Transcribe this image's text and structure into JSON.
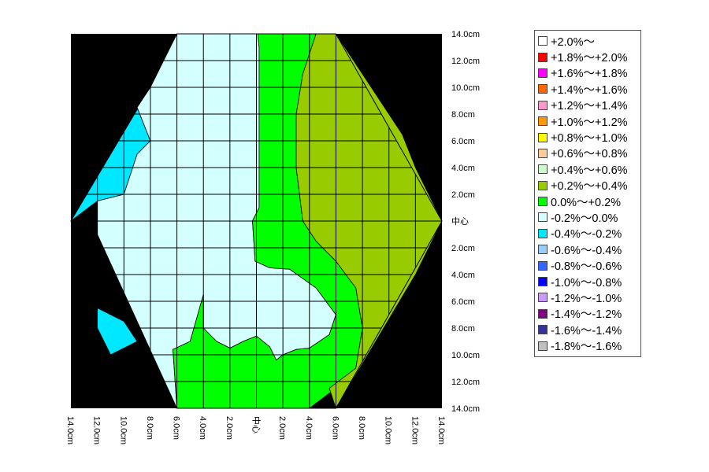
{
  "chart_data": {
    "type": "heatmap",
    "plot_kind": "contour",
    "title": "",
    "background_color": "#000000",
    "grid": true,
    "legend_position": "right",
    "right_axis_labels": [
      "14.0cm",
      "12.0cm",
      "10.0cm",
      "8.0cm",
      "6.0cm",
      "4.0cm",
      "2.0cm",
      "中心",
      "2.0cm",
      "4.0cm",
      "6.0cm",
      "8.0cm",
      "10.0cm",
      "12.0cm",
      "14.0cm"
    ],
    "bottom_axis_labels": [
      "14.0cm",
      "12.0cm",
      "10.0cm",
      "8.0cm",
      "6.0cm",
      "4.0cm",
      "2.0cm",
      "中心",
      "2.0cm",
      "4.0cm",
      "6.0cm",
      "8.0cm",
      "10.0cm",
      "12.0cm",
      "14.0cm"
    ],
    "x_range_cm": [
      -14,
      14
    ],
    "y_range_cm": [
      -14,
      14
    ],
    "grid_lines_cm": [
      -12,
      -10,
      -8,
      -6,
      -4,
      -2,
      0,
      2,
      4,
      6,
      8,
      10,
      12
    ],
    "sample_outline": [
      [
        -14,
        0
      ],
      [
        -6,
        14
      ],
      [
        6,
        14
      ],
      [
        14,
        0
      ],
      [
        6,
        -14
      ],
      [
        -6,
        -14
      ]
    ],
    "regions": [
      {
        "range": "-0.4%～-0.2%",
        "color": "#00e8ff",
        "points": [
          [
            -14,
            0
          ],
          [
            -12,
            1.5
          ],
          [
            -10,
            2
          ],
          [
            -9,
            5
          ],
          [
            -8,
            6
          ],
          [
            -9,
            8.5
          ],
          [
            -8,
            10
          ]
        ]
      },
      {
        "range": "-0.4%～-0.2%",
        "color": "#00e8ff",
        "points": [
          [
            -12,
            -4
          ],
          [
            -12,
            -6.5
          ],
          [
            -10,
            -7.5
          ],
          [
            -9,
            -9
          ],
          [
            -11,
            -10
          ],
          [
            -12,
            -8
          ]
        ]
      },
      {
        "range": "-0.2%～0.0%",
        "color": "#d4ffff",
        "points": [
          [
            -6,
            14
          ],
          [
            0.1,
            14
          ],
          [
            0.2,
            13
          ],
          [
            0.2,
            1
          ],
          [
            -0.3,
            0
          ],
          [
            -0.1,
            -3
          ],
          [
            1,
            -3.5
          ],
          [
            2.5,
            -3.6
          ],
          [
            4.5,
            -5
          ],
          [
            6,
            -7
          ],
          [
            5.5,
            -8.5
          ],
          [
            4,
            -9.5
          ],
          [
            3,
            -9.6
          ],
          [
            2,
            -10
          ],
          [
            1.5,
            -10.4
          ],
          [
            1,
            -9.4
          ],
          [
            0,
            -8.6
          ],
          [
            -1,
            -9
          ],
          [
            -2,
            -9.5
          ],
          [
            -3,
            -9
          ],
          [
            -4,
            -8
          ],
          [
            -4,
            -5.5
          ],
          [
            -5,
            -9
          ],
          [
            -6.3,
            -9.6
          ],
          [
            -6,
            -14
          ],
          [
            -12,
            -1
          ],
          [
            -12,
            1.5
          ],
          [
            -10,
            2
          ],
          [
            -9,
            5
          ],
          [
            -8,
            6
          ],
          [
            -9,
            8.5
          ],
          [
            -8,
            10
          ]
        ]
      },
      {
        "range": "0.0%～+0.2%",
        "color": "#00ff00",
        "points": [
          [
            0,
            16
          ],
          [
            2,
            14
          ],
          [
            6,
            14
          ],
          [
            4.5,
            14
          ],
          [
            3.5,
            11
          ],
          [
            3,
            8
          ],
          [
            3,
            4
          ],
          [
            3.5,
            0
          ],
          [
            4.5,
            -1.5
          ],
          [
            6,
            -3
          ],
          [
            7.5,
            -5
          ],
          [
            8,
            -8
          ],
          [
            7.5,
            -11
          ],
          [
            6,
            -12.5
          ],
          [
            4,
            -14
          ],
          [
            2,
            -14
          ],
          [
            0,
            -16
          ],
          [
            -2,
            -14
          ],
          [
            -6,
            -14
          ],
          [
            -6.3,
            -9.6
          ],
          [
            -5,
            -9
          ],
          [
            -4,
            -5.5
          ],
          [
            -4,
            -8
          ],
          [
            -3,
            -9
          ],
          [
            -2,
            -9.5
          ],
          [
            -1,
            -9
          ],
          [
            0,
            -8.6
          ],
          [
            1,
            -9.4
          ],
          [
            1.5,
            -10.4
          ],
          [
            2,
            -10
          ],
          [
            3,
            -9.6
          ],
          [
            4,
            -9.5
          ],
          [
            5.5,
            -8.5
          ],
          [
            6,
            -7
          ],
          [
            4.5,
            -5
          ],
          [
            2.5,
            -3.6
          ],
          [
            1,
            -3.5
          ],
          [
            -0.1,
            -3
          ],
          [
            -0.3,
            0
          ],
          [
            0.2,
            1
          ],
          [
            0.2,
            13
          ],
          [
            0.1,
            14
          ]
        ]
      },
      {
        "range": "+0.2%～+0.4%",
        "color": "#99cc00",
        "points": [
          [
            4.5,
            14
          ],
          [
            6,
            14
          ],
          [
            11,
            6.5
          ],
          [
            12,
            4
          ],
          [
            14,
            0
          ],
          [
            12,
            -4
          ],
          [
            6,
            -14
          ],
          [
            5.5,
            -12.5
          ],
          [
            7.5,
            -11
          ],
          [
            8,
            -8
          ],
          [
            7.5,
            -5
          ],
          [
            6,
            -3
          ],
          [
            4.5,
            -1.5
          ],
          [
            3.5,
            0
          ],
          [
            3,
            4
          ],
          [
            3,
            8
          ],
          [
            3.5,
            11
          ]
        ]
      }
    ],
    "legend": [
      {
        "label": "+2.0%～",
        "color": "#ffffff"
      },
      {
        "label": "+1.8%～+2.0%",
        "color": "#ff0000"
      },
      {
        "label": "+1.6%～+1.8%",
        "color": "#ff00ff"
      },
      {
        "label": "+1.4%～+1.6%",
        "color": "#ff6600"
      },
      {
        "label": "+1.2%～+1.4%",
        "color": "#ff99cc"
      },
      {
        "label": "+1.0%～+1.2%",
        "color": "#ff9900"
      },
      {
        "label": "+0.8%～+1.0%",
        "color": "#ffff00"
      },
      {
        "label": "+0.6%～+0.8%",
        "color": "#ffcc99"
      },
      {
        "label": "+0.4%～+0.6%",
        "color": "#ccffcc"
      },
      {
        "label": "+0.2%～+0.4%",
        "color": "#99cc00"
      },
      {
        "label": "0.0%～+0.2%",
        "color": "#00ff00"
      },
      {
        "label": "-0.2%～0.0%",
        "color": "#d4ffff"
      },
      {
        "label": "-0.4%～-0.2%",
        "color": "#00e8ff"
      },
      {
        "label": "-0.6%～-0.4%",
        "color": "#99ccff"
      },
      {
        "label": "-0.8%～-0.6%",
        "color": "#3366ff"
      },
      {
        "label": "-1.0%～-0.8%",
        "color": "#0000ff"
      },
      {
        "label": "-1.2%～-1.0%",
        "color": "#cc99ff"
      },
      {
        "label": "-1.4%～-1.2%",
        "color": "#800080"
      },
      {
        "label": "-1.6%～-1.4%",
        "color": "#333399"
      },
      {
        "label": "-1.8%～-1.6%",
        "color": "#c0c0c0"
      }
    ]
  }
}
